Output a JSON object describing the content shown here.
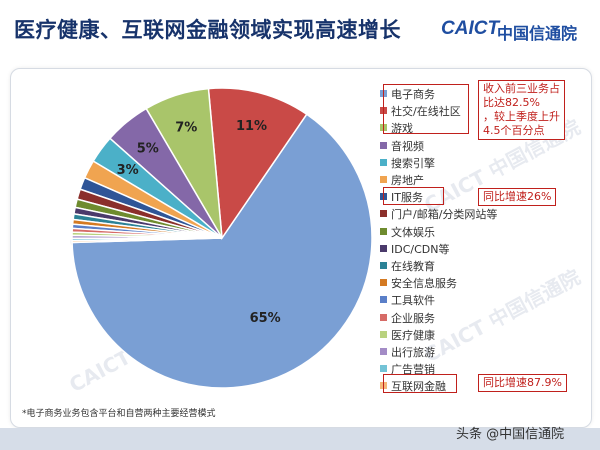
{
  "title": "医疗健康、互联网金融领域实现高速增长",
  "logo": {
    "en": "CAICT",
    "cn": "中国信通院"
  },
  "watermark": "CAICT 中国信通院",
  "footnote": "*电子商务业务包含平台和自营两种主要经营模式",
  "source": "头条 @中国信通院",
  "annotations": {
    "top": [
      "收入前三业务占",
      "比达82.5%",
      "，较上季度上升",
      "4.5个百分点"
    ],
    "it": "同比增速26%",
    "fin": "同比增速87.9%"
  },
  "chart_data": {
    "type": "pie",
    "title": "",
    "slices": [
      {
        "label": "电子商务",
        "value": 65,
        "display": "65%",
        "color": "#7a9fd4"
      },
      {
        "label": "社交/在线社区",
        "value": 11,
        "display": "11%",
        "color": "#c94a47"
      },
      {
        "label": "游戏",
        "value": 7,
        "display": "7%",
        "color": "#a9c56a"
      },
      {
        "label": "音视频",
        "value": 5,
        "display": "5%",
        "color": "#8468a8"
      },
      {
        "label": "搜索引擎",
        "value": 3,
        "display": "3%",
        "color": "#4bb0c8"
      },
      {
        "label": "房地产",
        "value": 2,
        "display": "",
        "color": "#f0a450"
      },
      {
        "label": "IT服务",
        "value": 1.3,
        "display": "",
        "color": "#2f5597"
      },
      {
        "label": "门户/邮箱/分类网站等",
        "value": 1.1,
        "display": "",
        "color": "#8b2f2b"
      },
      {
        "label": "文体娱乐",
        "value": 0.9,
        "display": "",
        "color": "#6e8b2e"
      },
      {
        "label": "IDC/CDN等",
        "value": 0.7,
        "display": "",
        "color": "#4b3a6b"
      },
      {
        "label": "在线教育",
        "value": 0.6,
        "display": "",
        "color": "#2b8296"
      },
      {
        "label": "安全信息服务",
        "value": 0.5,
        "display": "",
        "color": "#d47a22"
      },
      {
        "label": "工具软件",
        "value": 0.45,
        "display": "",
        "color": "#5a7fc8"
      },
      {
        "label": "企业服务",
        "value": 0.4,
        "display": "",
        "color": "#d66b67"
      },
      {
        "label": "医疗健康",
        "value": 0.35,
        "display": "",
        "color": "#b9d27f"
      },
      {
        "label": "出行旅游",
        "value": 0.3,
        "display": "",
        "color": "#a38cc6"
      },
      {
        "label": "广告营销",
        "value": 0.25,
        "display": "",
        "color": "#73c3d6"
      },
      {
        "label": "互联网金融",
        "value": 0.2,
        "display": "",
        "color": "#f6b97a"
      }
    ]
  }
}
